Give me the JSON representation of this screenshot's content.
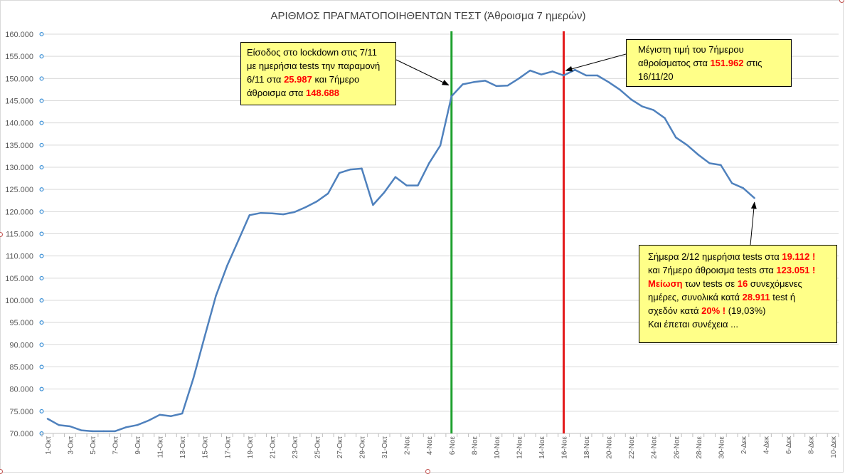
{
  "chart_data": {
    "type": "line",
    "title": "ΑΡΙΘΜΟΣ  ΠΡΑΓΜΑΤΟΠΟΙΗΘΕΝΤΩΝ  ΤΕΣΤ (Άθροισμα 7 ημερών)",
    "xlabel": "",
    "ylabel": "",
    "ylim": [
      70000,
      160000
    ],
    "y_ticks": [
      "70.000",
      "75.000",
      "80.000",
      "85.000",
      "90.000",
      "95.000",
      "100.000",
      "105.000",
      "110.000",
      "115.000",
      "120.000",
      "125.000",
      "130.000",
      "135.000",
      "140.000",
      "145.000",
      "150.000",
      "155.000",
      "160.000"
    ],
    "x_ticks": [
      "1-Οκτ",
      "3-Οκτ",
      "5-Οκτ",
      "7-Οκτ",
      "9-Οκτ",
      "11-Οκτ",
      "13-Οκτ",
      "15-Οκτ",
      "17-Οκτ",
      "19-Οκτ",
      "21-Οκτ",
      "23-Οκτ",
      "25-Οκτ",
      "27-Οκτ",
      "29-Οκτ",
      "31-Οκτ",
      "2-Νοε",
      "4-Νοε",
      "6-Νοε",
      "8-Νοε",
      "10-Νοε",
      "12-Νοε",
      "14-Νοε",
      "16-Νοε",
      "18-Νοε",
      "20-Νοε",
      "22-Νοε",
      "24-Νοε",
      "26-Νοε",
      "28-Νοε",
      "30-Νοε",
      "2-Δεκ",
      "4-Δεκ",
      "6-Δεκ",
      "8-Δεκ",
      "10-Δεκ"
    ],
    "grid": true,
    "series": [
      {
        "color": "#4f81bd",
        "values": [
          73300,
          71900,
          71600,
          70700,
          70500,
          70500,
          70500,
          71400,
          71900,
          72900,
          74200,
          73900,
          74500,
          82500,
          91800,
          101000,
          107800,
          113500,
          119200,
          119700,
          119600,
          119400,
          119900,
          121000,
          122300,
          124100,
          128700,
          129500,
          129700,
          121500,
          124300,
          127800,
          125900,
          125900,
          130900,
          134900,
          146000,
          148688,
          149200,
          149500,
          148300,
          148400,
          150000,
          151800,
          150900,
          151600,
          150700,
          151962,
          150700,
          150700,
          149200,
          147500,
          145300,
          143700,
          142900,
          141100,
          136700,
          135000,
          132800,
          130900,
          130500,
          126400,
          125300,
          123051
        ]
      }
    ],
    "vertical_lines": [
      {
        "x": "6-Νοε",
        "color": "#1fa12f"
      },
      {
        "x": "16-Νοε",
        "color": "#e31a1c"
      }
    ]
  },
  "annotations": {
    "lockdown": {
      "line1": "Είσοδος στο lockdown στις 7/11",
      "line2": "με ημερήσια tests την παραμονή",
      "line3_a": "6/11 στα ",
      "line3_b": "25.987",
      "line3_c": " και 7ήμερο",
      "line4_a": "άθροισμα στα ",
      "line4_b": "148.688"
    },
    "max": {
      "line1": "Μέγιστη τιμή του 7ήμερου",
      "line2_a": "αθροίσματος στα ",
      "line2_b": "151.962",
      "line2_c": " στις",
      "line3": "16/11/20"
    },
    "today": {
      "line1_a": "Σήμερα 2/12 ημερήσια tests στα ",
      "line1_b": "19.112 !",
      "line2_a": "και 7ήμερο άθροισμα tests στα ",
      "line2_b": "123.051 !",
      "line3_a": "Μείωση",
      "line3_b": " των tests σε ",
      "line3_c": "16",
      "line3_d": " συνεχόμενες",
      "line4_a": "ημέρες, συνολικά κατά ",
      "line4_b": "28.911",
      "line4_c": " test ή",
      "line5_a": "σχεδόν κατά ",
      "line5_b": "20% !",
      "line5_c": " (19,03%)",
      "line6": "Και έπεται συνέχεια ..."
    }
  }
}
